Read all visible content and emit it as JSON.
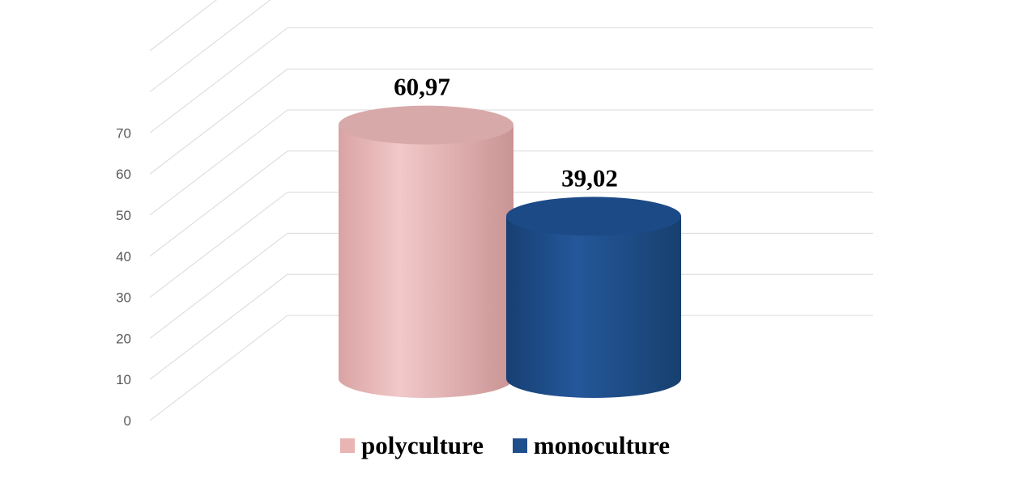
{
  "chart_data": {
    "type": "bar",
    "title": "",
    "xlabel": "",
    "ylabel": "",
    "categories": [
      "polyculture",
      "monoculture"
    ],
    "values": [
      60.97,
      39.02
    ],
    "data_labels": [
      "60,97",
      "39,02"
    ],
    "ylim": [
      0,
      70
    ],
    "yticks": [
      "0",
      "10",
      "20",
      "30",
      "40",
      "50",
      "60",
      "70"
    ],
    "grid": true,
    "legend_position": "bottom",
    "shape": "3d-cylinder",
    "colors": [
      "#e8b4b4",
      "#1f4e8c"
    ]
  },
  "legend": [
    {
      "label": "polyculture",
      "color": "#e8b4b4"
    },
    {
      "label": "monoculture",
      "color": "#1f4e8c"
    }
  ]
}
